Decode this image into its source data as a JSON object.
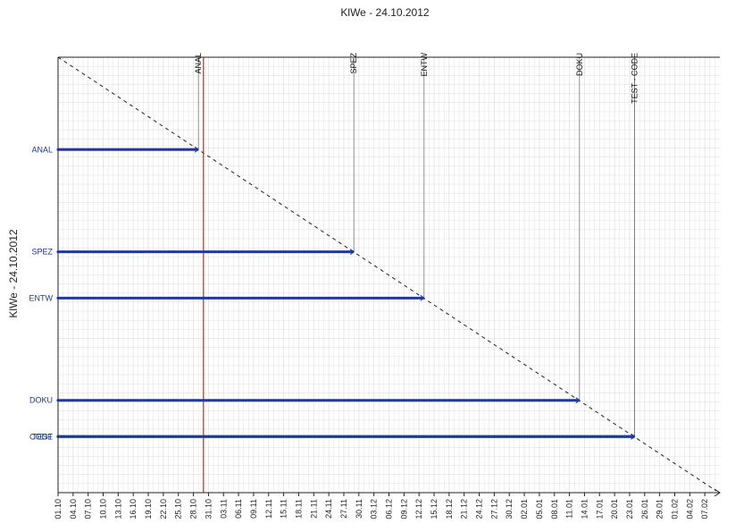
{
  "chart_data": {
    "type": "milestone-trend",
    "title": "KlWe - 24.10.2012",
    "ylabel": "KlWe - 24.10.2012",
    "report_date": "2012-10-30",
    "x_tick_labels": [
      "01.10",
      "04.10",
      "07.10",
      "10.10",
      "13.10",
      "16.10",
      "19.10",
      "22.10",
      "25.10",
      "28.10",
      "31.10",
      "03.11",
      "06.11",
      "09.11",
      "12.11",
      "15.11",
      "18.11",
      "21.11",
      "24.11",
      "27.11",
      "30.11",
      "03.12",
      "06.12",
      "09.12",
      "12.12",
      "15.12",
      "18.12",
      "21.12",
      "24.12",
      "27.12",
      "30.12",
      "02.01",
      "05.01",
      "08.01",
      "11.01",
      "14.01",
      "17.01",
      "20.01",
      "23.01",
      "26.01",
      "29.01",
      "01.02",
      "04.02",
      "07.02"
    ],
    "xlim": [
      "2012-10-01",
      "2013-02-10"
    ],
    "ylim": [
      "2012-10-01",
      "2013-02-10"
    ],
    "grid": true,
    "colors": {
      "milestone_line": "#1f3a9a",
      "report_line": "#cc2222",
      "diagonal": "#222222",
      "grid": "#e2e2e2"
    },
    "milestones": [
      {
        "name": "ANAL",
        "date": "2012-10-29"
      },
      {
        "name": "SPEZ",
        "date": "2012-11-29"
      },
      {
        "name": "ENTW",
        "date": "2012-12-13"
      },
      {
        "name": "DOKU",
        "date": "2013-01-13"
      },
      {
        "name": "TEST",
        "date": "2013-01-24"
      },
      {
        "name": "CODE",
        "date": "2013-01-24"
      }
    ],
    "top_labels": [
      "ANAL",
      "SPEZ",
      "ENTW",
      "DOKU",
      "TEST - CODE"
    ]
  }
}
